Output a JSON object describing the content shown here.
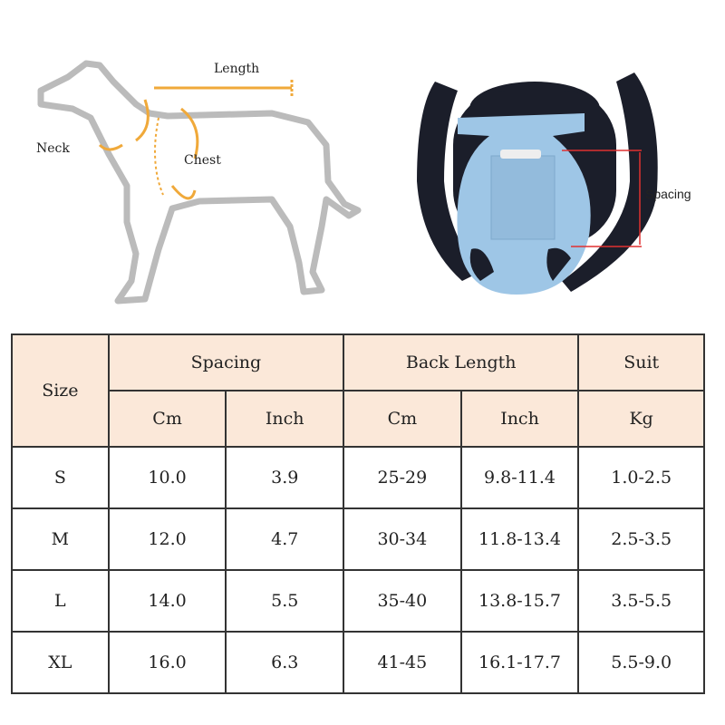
{
  "illustration": {
    "dog_labels": {
      "length": "Length",
      "neck": "Neck",
      "chest": "Chest"
    },
    "carrier_label": "Spacing",
    "colors": {
      "measure_arrow": "#f0a93a",
      "spacing_arrow": "#e03030",
      "carrier_body": "#9ec6e6",
      "carrier_straps": "#1b1e2a"
    }
  },
  "table": {
    "header_bg": "#fbe8d9",
    "headers": {
      "size": "Size",
      "spacing": "Spacing",
      "back_length": "Back Length",
      "suit": "Suit"
    },
    "subheaders": [
      "Cm",
      "Inch",
      "Cm",
      "Inch",
      "Kg"
    ],
    "rows": [
      {
        "size": "S",
        "spacing_cm": "10.0",
        "spacing_inch": "3.9",
        "back_cm": "25-29",
        "back_inch": "9.8-11.4",
        "kg": "1.0-2.5"
      },
      {
        "size": "M",
        "spacing_cm": "12.0",
        "spacing_inch": "4.7",
        "back_cm": "30-34",
        "back_inch": "11.8-13.4",
        "kg": "2.5-3.5"
      },
      {
        "size": "L",
        "spacing_cm": "14.0",
        "spacing_inch": "5.5",
        "back_cm": "35-40",
        "back_inch": "13.8-15.7",
        "kg": "3.5-5.5"
      },
      {
        "size": "XL",
        "spacing_cm": "16.0",
        "spacing_inch": "6.3",
        "back_cm": "41-45",
        "back_inch": "16.1-17.7",
        "kg": "5.5-9.0"
      }
    ]
  }
}
